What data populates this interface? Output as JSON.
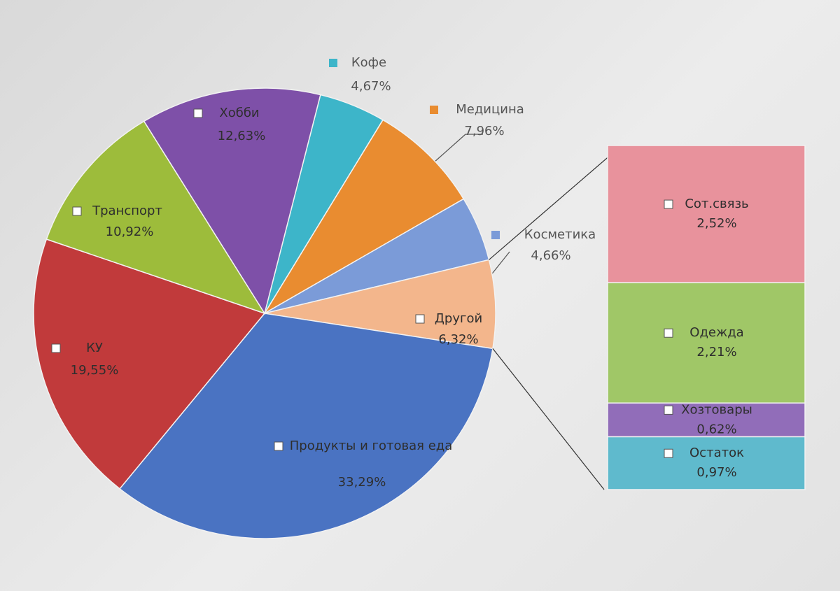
{
  "chart_data": [
    {
      "type": "pie",
      "categories": [
        "Кофе",
        "Медицина",
        "Косметика",
        "Другой",
        "Продукты и готовая еда",
        "КУ",
        "Транспорт",
        "Хобби"
      ],
      "values": [
        4.67,
        7.96,
        4.66,
        6.32,
        33.29,
        19.55,
        10.92,
        12.63
      ],
      "value_labels": [
        "4,67%",
        "7,96%",
        "4,66%",
        "6,32%",
        "33,29%",
        "19,55%",
        "10,92%",
        "12,63%"
      ],
      "colors": [
        "#3db5c9",
        "#e98c30",
        "#7b9bd8",
        "#f3b68c",
        "#4a73c2",
        "#c13a3b",
        "#9dbc3b",
        "#7e50a8"
      ]
    },
    {
      "type": "stacked-bar",
      "categories": [
        "Сот.связь",
        "Одежда",
        "Хозтовары",
        "Остаток"
      ],
      "values": [
        2.52,
        2.21,
        0.62,
        0.97
      ],
      "value_labels": [
        "2,52%",
        "2,21%",
        "0,62%",
        "0,97%"
      ],
      "colors": [
        "#e8929c",
        "#a0c767",
        "#916db9",
        "#5fbacd"
      ]
    }
  ]
}
